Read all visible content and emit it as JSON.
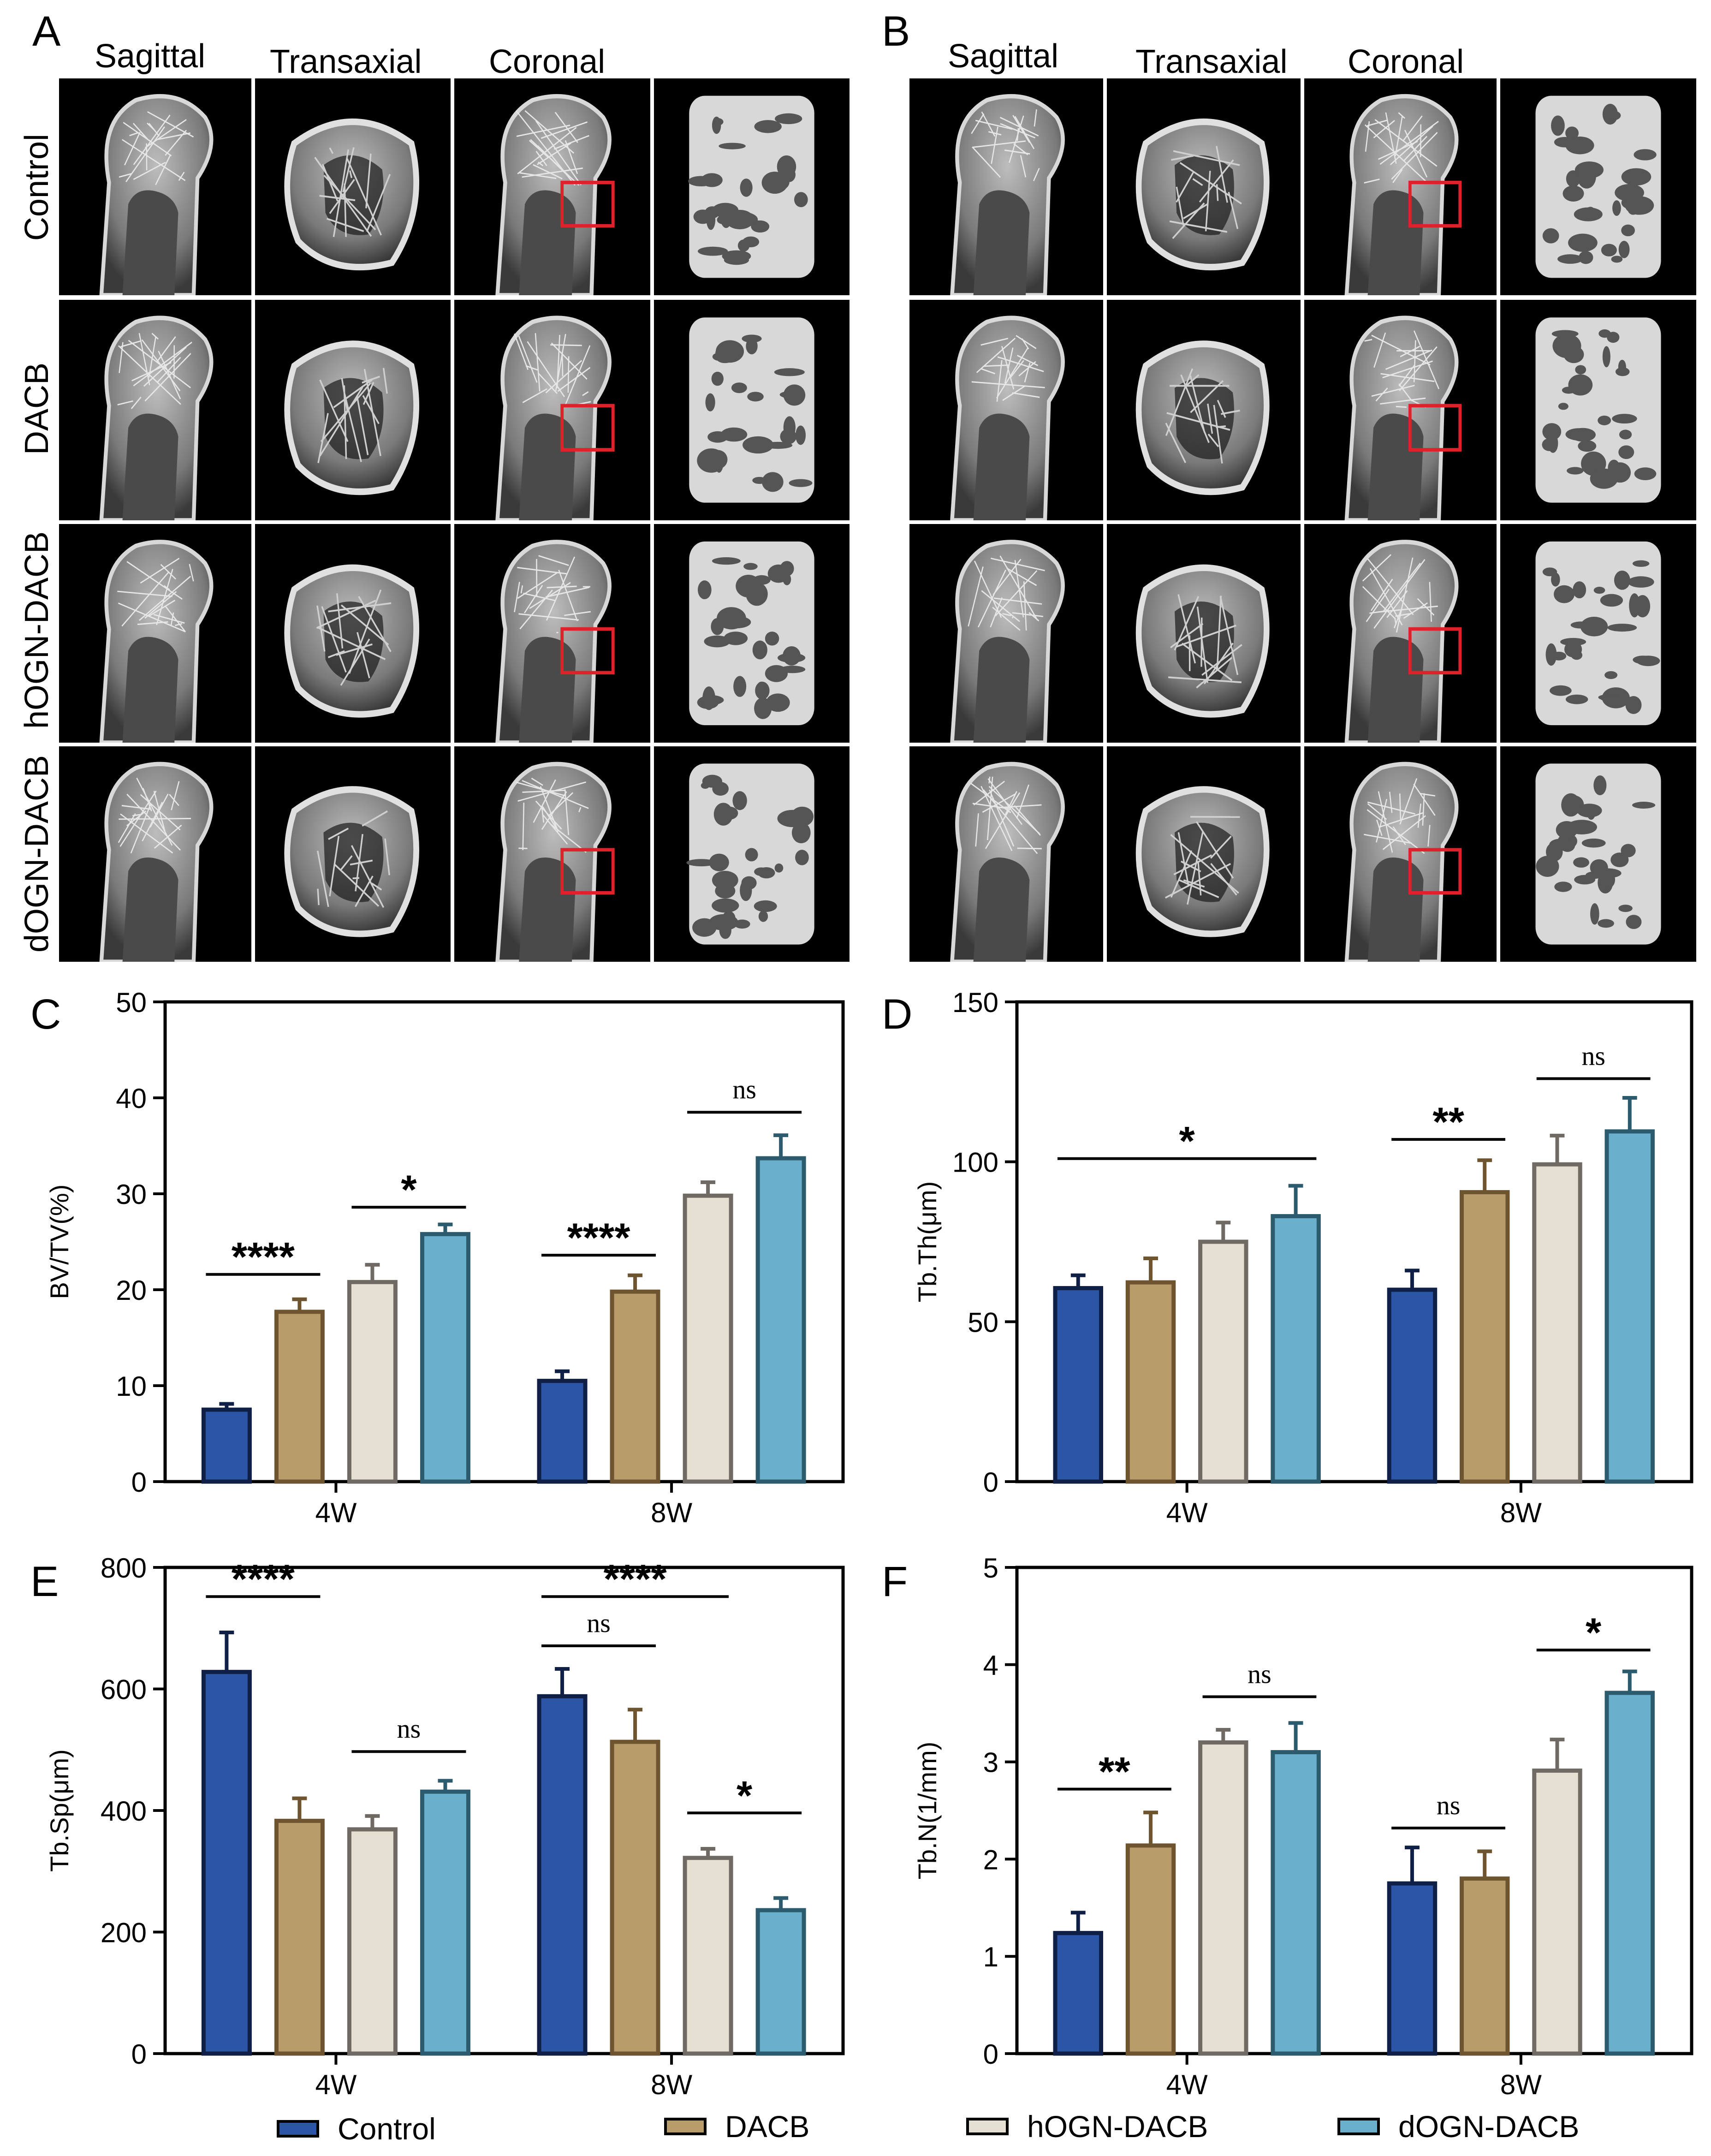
{
  "figure": {
    "panel_letters": [
      "A",
      "B",
      "C",
      "D",
      "E",
      "F"
    ],
    "view_labels": [
      "Sagittal",
      "Transaxial",
      "Coronal"
    ],
    "row_labels": [
      "Control",
      "DACB",
      "hOGN-DACB",
      "dOGN-DACB"
    ]
  },
  "legend": [
    {
      "name": "Control",
      "color": "#2b55a5"
    },
    {
      "name": "DACB",
      "color": "#b89c6a"
    },
    {
      "name": "hOGN-DACB",
      "color": "#e6e0d2"
    },
    {
      "name": "dOGN-DACB",
      "color": "#6aafcc"
    }
  ],
  "colors": {
    "borders": [
      "#0f1f45",
      "#6e5530",
      "#6f6a63",
      "#2c5b6e"
    ],
    "highlight_box": "#e0202a"
  },
  "chart_data": [
    {
      "panel": "C",
      "type": "bar",
      "ylabel": "BV/TV(%)",
      "ylim": [
        0,
        50
      ],
      "yticks": [
        0,
        10,
        20,
        30,
        40,
        50
      ],
      "categories": [
        "4W",
        "8W"
      ],
      "series": [
        {
          "name": "Control",
          "values": [
            7.5,
            10.5
          ],
          "errors": [
            0.6,
            1.0
          ]
        },
        {
          "name": "DACB",
          "values": [
            17.7,
            19.8
          ],
          "errors": [
            1.3,
            1.7
          ]
        },
        {
          "name": "hOGN-DACB",
          "values": [
            20.8,
            29.8
          ],
          "errors": [
            1.8,
            1.4
          ]
        },
        {
          "name": "dOGN-DACB",
          "values": [
            25.8,
            33.7
          ],
          "errors": [
            1.0,
            2.4
          ]
        }
      ],
      "annotations": [
        {
          "text": "****",
          "group": 0,
          "from": 0,
          "to": 1,
          "y": 21.6,
          "style": "star"
        },
        {
          "text": "*",
          "group": 0,
          "from": 2,
          "to": 3,
          "y": 28.6,
          "style": "star"
        },
        {
          "text": "****",
          "group": 1,
          "from": 0,
          "to": 1,
          "y": 23.6,
          "style": "star"
        },
        {
          "text": "ns",
          "group": 1,
          "from": 2,
          "to": 3,
          "y": 38.5,
          "style": "ns"
        }
      ]
    },
    {
      "panel": "D",
      "type": "bar",
      "ylabel": "Tb.Th(μm)",
      "ylim": [
        0,
        150
      ],
      "yticks": [
        0,
        50,
        100,
        150
      ],
      "categories": [
        "4W",
        "8W"
      ],
      "series": [
        {
          "name": "Control",
          "values": [
            60.5,
            60.0
          ],
          "errors": [
            4.0,
            6.0
          ]
        },
        {
          "name": "DACB",
          "values": [
            62.3,
            90.5
          ],
          "errors": [
            7.5,
            10.0
          ]
        },
        {
          "name": "hOGN-DACB",
          "values": [
            75.0,
            99.2
          ],
          "errors": [
            6.0,
            9.0
          ]
        },
        {
          "name": "dOGN-DACB",
          "values": [
            83.0,
            109.5
          ],
          "errors": [
            9.5,
            10.5
          ]
        }
      ],
      "annotations": [
        {
          "text": "*",
          "group": 0,
          "from": 0,
          "to": 3,
          "y": 101,
          "style": "star"
        },
        {
          "text": "**",
          "group": 1,
          "from": 0,
          "to": 1,
          "y": 107,
          "style": "star"
        },
        {
          "text": "ns",
          "group": 1,
          "from": 2,
          "to": 3,
          "y": 126,
          "style": "ns"
        }
      ]
    },
    {
      "panel": "E",
      "type": "bar",
      "ylabel": "Tb.Sp(μm)",
      "ylim": [
        0,
        800
      ],
      "yticks": [
        0,
        200,
        400,
        600,
        800
      ],
      "categories": [
        "4W",
        "8W"
      ],
      "series": [
        {
          "name": "Control",
          "values": [
            628,
            588
          ],
          "errors": [
            65,
            45
          ]
        },
        {
          "name": "DACB",
          "values": [
            383,
            513
          ],
          "errors": [
            37,
            53
          ]
        },
        {
          "name": "hOGN-DACB",
          "values": [
            369,
            322
          ],
          "errors": [
            22,
            15
          ]
        },
        {
          "name": "dOGN-DACB",
          "values": [
            431,
            236
          ],
          "errors": [
            18,
            20
          ]
        }
      ],
      "annotations": [
        {
          "text": "****",
          "group": 0,
          "from": 0,
          "to": 1,
          "y": 752,
          "style": "star"
        },
        {
          "text": "ns",
          "group": 0,
          "from": 2,
          "to": 3,
          "y": 497,
          "style": "ns"
        },
        {
          "text": "****",
          "group": 1,
          "from": 0,
          "to": 2,
          "y": 752,
          "style": "star"
        },
        {
          "text": "ns",
          "group": 1,
          "from": 0,
          "to": 1,
          "y": 671,
          "style": "ns"
        },
        {
          "text": "*",
          "group": 1,
          "from": 2,
          "to": 3,
          "y": 396,
          "style": "star"
        }
      ]
    },
    {
      "panel": "F",
      "type": "bar",
      "ylabel": "Tb.N(1/mm)",
      "ylim": [
        0,
        5
      ],
      "yticks": [
        0,
        1,
        2,
        3,
        4,
        5
      ],
      "categories": [
        "4W",
        "8W"
      ],
      "series": [
        {
          "name": "Control",
          "values": [
            1.24,
            1.75
          ],
          "errors": [
            0.21,
            0.37
          ]
        },
        {
          "name": "DACB",
          "values": [
            2.14,
            1.8
          ],
          "errors": [
            0.34,
            0.28
          ]
        },
        {
          "name": "hOGN-DACB",
          "values": [
            3.2,
            2.91
          ],
          "errors": [
            0.13,
            0.32
          ]
        },
        {
          "name": "dOGN-DACB",
          "values": [
            3.1,
            3.71
          ],
          "errors": [
            0.3,
            0.22
          ]
        }
      ],
      "annotations": [
        {
          "text": "**",
          "group": 0,
          "from": 0,
          "to": 1,
          "y": 2.72,
          "style": "star"
        },
        {
          "text": "ns",
          "group": 0,
          "from": 2,
          "to": 3,
          "y": 3.67,
          "style": "ns"
        },
        {
          "text": "ns",
          "group": 1,
          "from": 0,
          "to": 1,
          "y": 2.32,
          "style": "ns"
        },
        {
          "text": "*",
          "group": 1,
          "from": 2,
          "to": 3,
          "y": 4.15,
          "style": "star"
        }
      ]
    }
  ]
}
